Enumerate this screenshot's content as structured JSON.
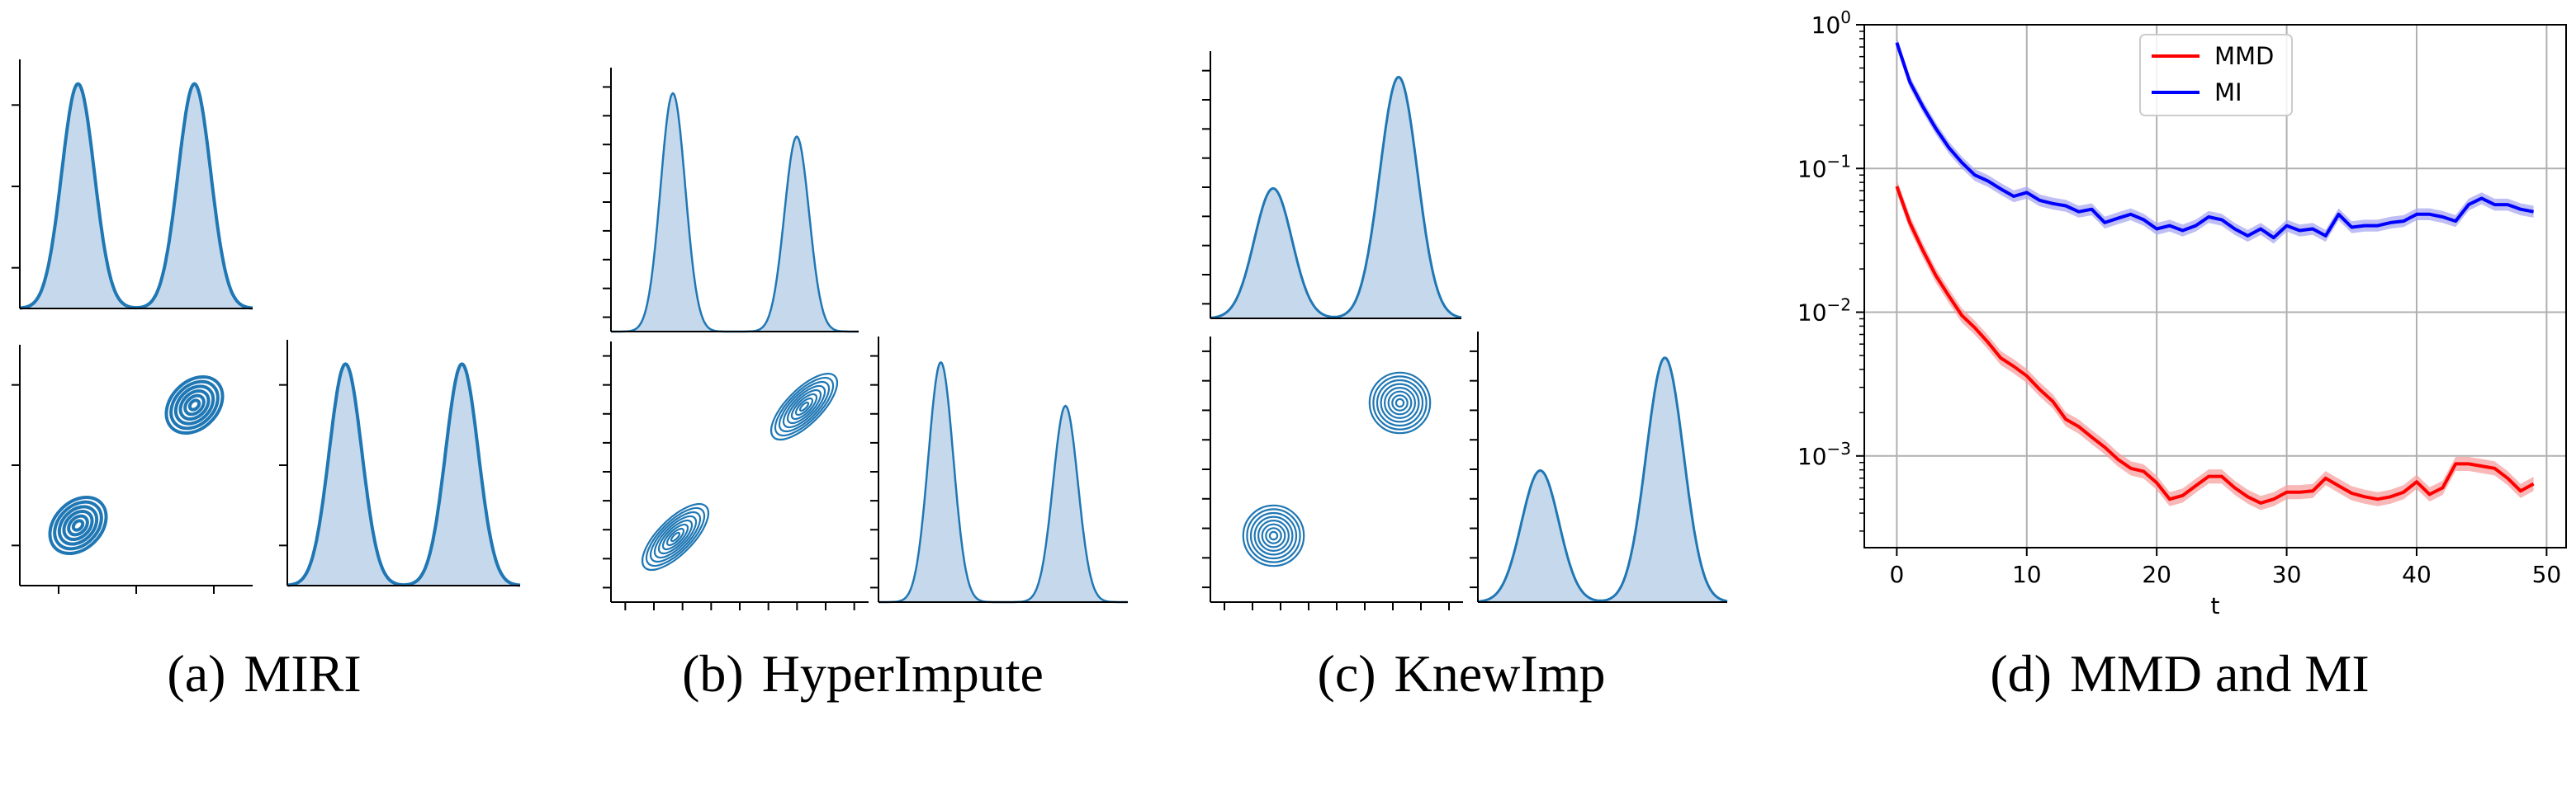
{
  "captions": [
    {
      "prefix": "(a)",
      "name": "MIRI"
    },
    {
      "prefix": "(b)",
      "name": "HyperImpute"
    },
    {
      "prefix": "(c)",
      "name": "KnewImp"
    },
    {
      "prefix": "(d)",
      "name": "MMD and MI"
    }
  ],
  "colors": {
    "density": "#1f77b4",
    "density_fill": "#c6d9ec",
    "mmd": "#ff0000",
    "mmd_band": "#f5a0a0",
    "mi": "#0000ff",
    "mi_band": "#a8a8f0"
  },
  "chart_data": [
    {
      "panel": "(a) MIRI",
      "type": "pairplot-kde",
      "marginal_x": {
        "modes": [
          -1.0,
          1.0
        ],
        "sigma": 0.28,
        "weights": [
          0.5,
          0.5
        ]
      },
      "marginal_y": {
        "modes": [
          -1.0,
          1.0
        ],
        "sigma": 0.28,
        "weights": [
          0.5,
          0.5
        ]
      },
      "joint_clusters": [
        {
          "x": -1.0,
          "y": -1.0
        },
        {
          "x": 1.0,
          "y": 1.0
        }
      ],
      "joint_correlation": 0.3
    },
    {
      "panel": "(b) HyperImpute",
      "type": "pairplot-kde",
      "marginal_x": {
        "modes": [
          -1.0,
          1.0
        ],
        "sigma": 0.2,
        "weights": [
          0.55,
          0.45
        ]
      },
      "marginal_y": {
        "modes": [
          -1.0,
          1.0
        ],
        "sigma": 0.2,
        "weights": [
          0.55,
          0.45
        ]
      },
      "joint_clusters": [
        {
          "x": -1.0,
          "y": -1.0
        },
        {
          "x": 1.0,
          "y": 1.0
        }
      ],
      "joint_correlation": 0.8
    },
    {
      "panel": "(c) KnewImp",
      "type": "pairplot-kde",
      "marginal_x": {
        "modes": [
          -1.0,
          1.0
        ],
        "sigma": 0.3,
        "weights": [
          0.35,
          0.65
        ]
      },
      "marginal_y": {
        "modes": [
          -1.0,
          1.0
        ],
        "sigma": 0.3,
        "weights": [
          0.35,
          0.65
        ]
      },
      "joint_clusters": [
        {
          "x": -1.0,
          "y": -1.0
        },
        {
          "x": 1.0,
          "y": 1.0
        }
      ],
      "joint_correlation": 0.0
    },
    {
      "panel": "(d) MMD and MI",
      "type": "line",
      "xlabel": "t",
      "ylabel": "",
      "yscale": "log",
      "xlim": [
        -2.5,
        51.5
      ],
      "ylim": [
        0.00023,
        1.0
      ],
      "xticks": [
        0,
        10,
        20,
        30,
        40,
        50
      ],
      "yticks": [
        {
          "value": 1,
          "base": "10",
          "exp": "0"
        },
        {
          "value": 0.1,
          "base": "10",
          "exp": "−1"
        },
        {
          "value": 0.01,
          "base": "10",
          "exp": "−2"
        },
        {
          "value": 0.001,
          "base": "10",
          "exp": "−3"
        }
      ],
      "grid": true,
      "legend": "top-center",
      "x": [
        0,
        1,
        2,
        3,
        4,
        5,
        6,
        7,
        8,
        9,
        10,
        11,
        12,
        13,
        14,
        15,
        16,
        17,
        18,
        19,
        20,
        21,
        22,
        23,
        24,
        25,
        26,
        27,
        28,
        29,
        30,
        31,
        32,
        33,
        34,
        35,
        36,
        37,
        38,
        39,
        40,
        41,
        42,
        43,
        44,
        45,
        46,
        47,
        48,
        49
      ],
      "series": [
        {
          "name": "MMD",
          "color": "#ff0000",
          "values": [
            0.075,
            0.042,
            0.027,
            0.018,
            0.013,
            0.0095,
            0.0078,
            0.0062,
            0.0048,
            0.0042,
            0.0036,
            0.0029,
            0.0024,
            0.0018,
            0.0016,
            0.00135,
            0.00115,
            0.00095,
            0.00082,
            0.00078,
            0.00065,
            0.0005,
            0.00053,
            0.00062,
            0.00072,
            0.00072,
            0.0006,
            0.00052,
            0.00047,
            0.0005,
            0.00056,
            0.00056,
            0.00057,
            0.0007,
            0.00062,
            0.00055,
            0.00052,
            0.0005,
            0.00052,
            0.00056,
            0.00066,
            0.00054,
            0.0006,
            0.00088,
            0.00088,
            0.00085,
            0.00082,
            0.0007,
            0.00057,
            0.00064
          ],
          "band": 0.12
        },
        {
          "name": "MI",
          "color": "#0000ff",
          "values": [
            0.75,
            0.4,
            0.27,
            0.19,
            0.14,
            0.11,
            0.09,
            0.082,
            0.072,
            0.064,
            0.068,
            0.06,
            0.057,
            0.055,
            0.05,
            0.052,
            0.042,
            0.045,
            0.048,
            0.044,
            0.038,
            0.04,
            0.037,
            0.04,
            0.046,
            0.044,
            0.038,
            0.034,
            0.038,
            0.033,
            0.04,
            0.037,
            0.038,
            0.034,
            0.048,
            0.039,
            0.04,
            0.04,
            0.042,
            0.043,
            0.048,
            0.048,
            0.046,
            0.043,
            0.056,
            0.062,
            0.056,
            0.056,
            0.052,
            0.05
          ],
          "band": 0.1
        }
      ]
    }
  ]
}
